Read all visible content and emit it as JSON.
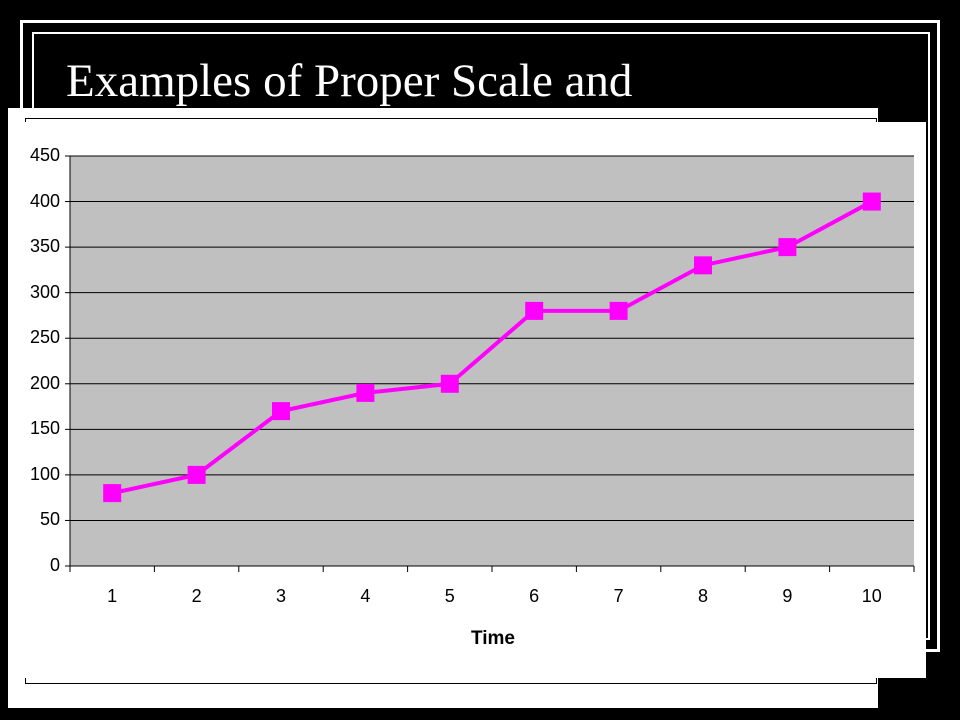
{
  "slide": {
    "title": "Examples of Proper Scale and"
  },
  "colors": {
    "background": "#000000",
    "plot_area": "#c0c0c0",
    "series": "#ff00ff",
    "gridline": "#000000"
  },
  "chart_data": {
    "type": "line",
    "title": "",
    "xlabel": "Time",
    "ylabel": "",
    "x": [
      1,
      2,
      3,
      4,
      5,
      6,
      7,
      8,
      9,
      10
    ],
    "categories": [
      "1",
      "2",
      "3",
      "4",
      "5",
      "6",
      "7",
      "8",
      "9",
      "10"
    ],
    "series": [
      {
        "values": [
          80,
          100,
          170,
          190,
          200,
          280,
          280,
          330,
          350,
          400
        ],
        "marker": "square"
      }
    ],
    "ylim": [
      0,
      450
    ],
    "yticks": [
      "0",
      "50",
      "100",
      "150",
      "200",
      "250",
      "300",
      "350",
      "400",
      "450"
    ],
    "grid": true,
    "legend": "none"
  }
}
